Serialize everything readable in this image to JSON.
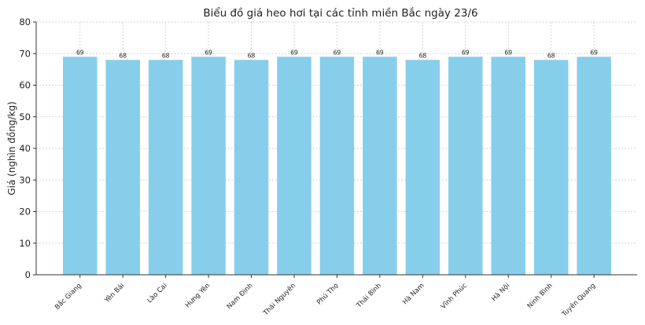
{
  "chart_data": {
    "type": "bar",
    "title": "Biểu đồ giá heo hơi tại các tỉnh miền Bắc ngày 23/6",
    "xlabel": "",
    "ylabel": "Giá (nghìn đồng/kg)",
    "ylim": [
      0,
      80
    ],
    "yticks": [
      0,
      10,
      20,
      30,
      40,
      50,
      60,
      70,
      80
    ],
    "grid": true,
    "categories": [
      "Bắc Giang",
      "Yên Bái",
      "Lào Cai",
      "Hưng Yên",
      "Nam Định",
      "Thái Nguyên",
      "Phú Thọ",
      "Thái Bình",
      "Hà Nam",
      "Vĩnh Phúc",
      "Hà Nội",
      "Ninh Bình",
      "Tuyên Quang"
    ],
    "values": [
      69,
      68,
      68,
      69,
      68,
      69,
      69,
      69,
      68,
      69,
      69,
      68,
      69
    ],
    "data_labels": [
      "69",
      "68",
      "68",
      "69",
      "68",
      "69",
      "69",
      "69",
      "68",
      "69",
      "69",
      "68",
      "69"
    ],
    "bar_color": "#87ceeb",
    "grid_color": "#c8c8c8"
  }
}
